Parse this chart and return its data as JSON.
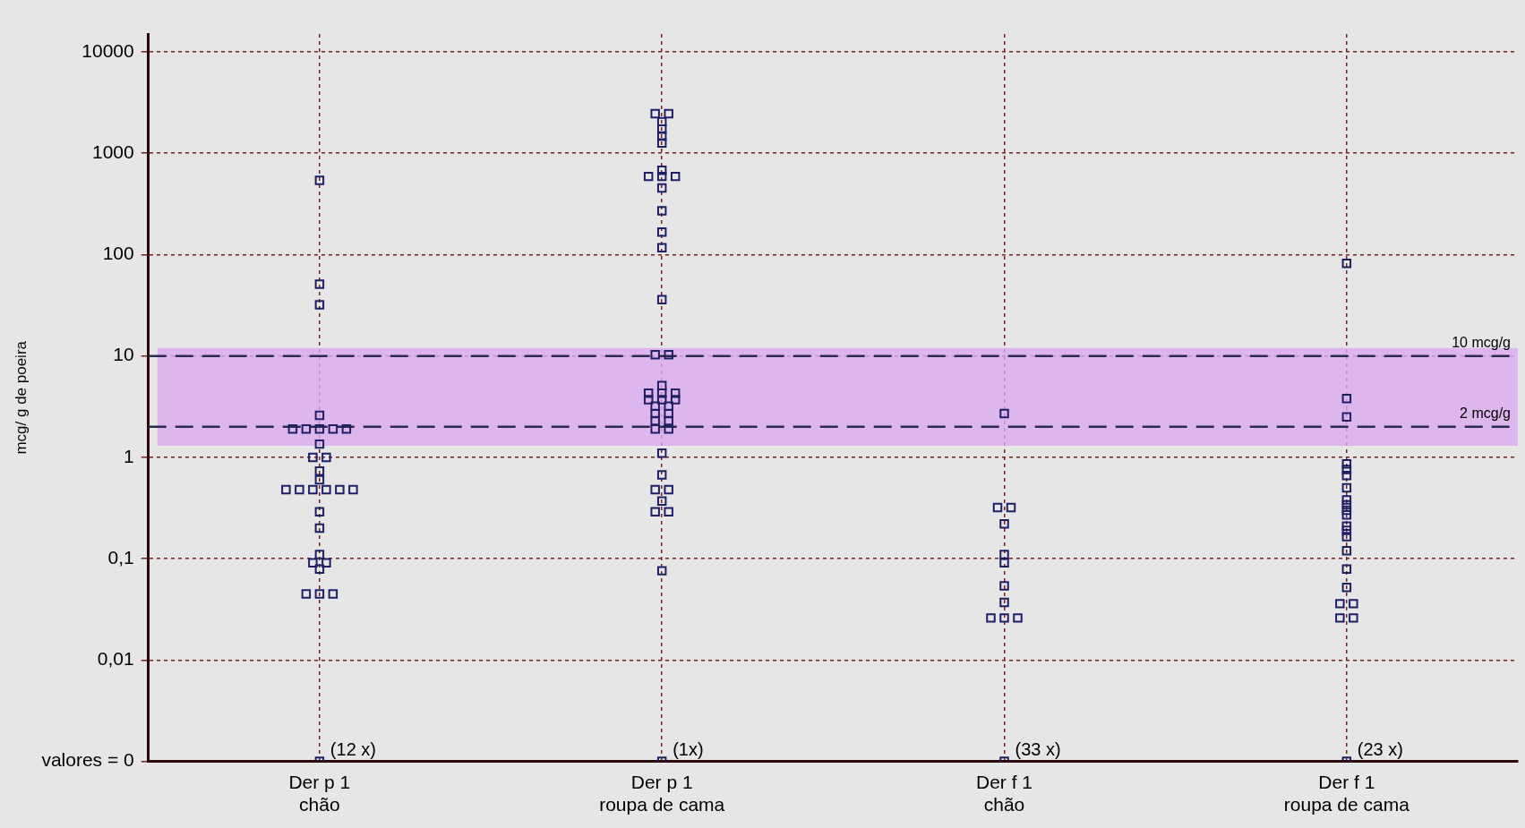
{
  "chart_data": {
    "type": "scatter",
    "ylabel": "mcg/ g de poeira",
    "categories": [
      "Der p 1\nchão",
      "Der p 1\nroupa de cama",
      "Der f 1\nchão",
      "Der f 1\nroupa de cama"
    ],
    "series": [
      {
        "color": "#1f1f66",
        "x": [
          "Der p 1\nchão",
          "Der p 1\nchão",
          "Der p 1\nchão",
          "Der p 1\nchão",
          "Der p 1\nchão",
          "Der p 1\nchão",
          "Der p 1\nchão",
          "Der p 1\nchão",
          "Der p 1\nchão",
          "Der p 1\nchão",
          "Der p 1\nchão",
          "Der p 1\nchão",
          "Der p 1\nchão",
          "Der p 1\nchão",
          "Der p 1\nchão",
          "Der p 1\nchão",
          "Der p 1\nchão",
          "Der p 1\nchão",
          "Der p 1\nchão",
          "Der p 1\nchão",
          "Der p 1\nchão",
          "Der p 1\nchão",
          "Der p 1\nchão",
          "Der p 1\nchão",
          "Der p 1\nchão",
          "Der p 1\nchão",
          "Der p 1\nchão",
          "Der p 1\nchão",
          "Der p 1\nchão",
          "Der p 1\nchão"
        ],
        "values": [
          540,
          51,
          32,
          2.6,
          1.9,
          1.9,
          1.9,
          1.9,
          1.9,
          1.35,
          1,
          1,
          0.73,
          0.6,
          0.48,
          0.48,
          0.48,
          0.48,
          0.48,
          0.48,
          0.29,
          0.2,
          0.11,
          0.091,
          0.091,
          0.079,
          0.045,
          0.045,
          0.045,
          0.001
        ]
      },
      {
        "color": "#1f1f66",
        "x": [
          "Der p 1\nroupa de cama",
          "Der p 1\nroupa de cama",
          "Der p 1\nroupa de cama",
          "Der p 1\nroupa de cama",
          "Der p 1\nroupa de cama",
          "Der p 1\nroupa de cama",
          "Der p 1\nroupa de cama",
          "Der p 1\nroupa de cama",
          "Der p 1\nroupa de cama",
          "Der p 1\nroupa de cama",
          "Der p 1\nroupa de cama",
          "Der p 1\nroupa de cama",
          "Der p 1\nroupa de cama",
          "Der p 1\nroupa de cama",
          "Der p 1\nroupa de cama",
          "Der p 1\nroupa de cama",
          "Der p 1\nroupa de cama",
          "Der p 1\nroupa de cama",
          "Der p 1\nroupa de cama",
          "Der p 1\nroupa de cama",
          "Der p 1\nroupa de cama",
          "Der p 1\nroupa de cama",
          "Der p 1\nroupa de cama",
          "Der p 1\nroupa de cama",
          "Der p 1\nroupa de cama",
          "Der p 1\nroupa de cama",
          "Der p 1\nroupa de cama",
          "Der p 1\nroupa de cama",
          "Der p 1\nroupa de cama",
          "Der p 1\nroupa de cama",
          "Der p 1\nroupa de cama",
          "Der p 1\nroupa de cama",
          "Der p 1\nroupa de cama",
          "Der p 1\nroupa de cama",
          "Der p 1\nroupa de cama",
          "Der p 1\nroupa de cama",
          "Der p 1\nroupa de cama",
          "Der p 1\nroupa de cama",
          "Der p 1\nroupa de cama",
          "Der p 1\nroupa de cama",
          "Der p 1\nroupa de cama"
        ],
        "values": [
          2450,
          2450,
          2050,
          1730,
          1480,
          1260,
          680,
          590,
          590,
          590,
          455,
          270,
          167,
          117,
          36,
          10.3,
          10.3,
          5.1,
          4.3,
          4.3,
          4.3,
          3.7,
          3.7,
          3.7,
          3.2,
          3.2,
          2.7,
          2.7,
          2.3,
          2.3,
          1.9,
          1.9,
          1.1,
          0.67,
          0.48,
          0.48,
          0.37,
          0.29,
          0.29,
          0.076,
          0.001
        ]
      },
      {
        "color": "#1f1f66",
        "x": [
          "Der f 1\nchão",
          "Der f 1\nchão",
          "Der f 1\nchão",
          "Der f 1\nchão",
          "Der f 1\nchão",
          "Der f 1\nchão",
          "Der f 1\nchão",
          "Der f 1\nchão",
          "Der f 1\nchão",
          "Der f 1\nchão",
          "Der f 1\nchão",
          "Der f 1\nchão"
        ],
        "values": [
          2.7,
          0.32,
          0.32,
          0.22,
          0.11,
          0.091,
          0.054,
          0.037,
          0.026,
          0.026,
          0.026,
          0.001
        ]
      },
      {
        "color": "#1f1f66",
        "x": [
          "Der f 1\nroupa de cama",
          "Der f 1\nroupa de cama",
          "Der f 1\nroupa de cama",
          "Der f 1\nroupa de cama",
          "Der f 1\nroupa de cama",
          "Der f 1\nroupa de cama",
          "Der f 1\nroupa de cama",
          "Der f 1\nroupa de cama",
          "Der f 1\nroupa de cama",
          "Der f 1\nroupa de cama",
          "Der f 1\nroupa de cama",
          "Der f 1\nroupa de cama",
          "Der f 1\nroupa de cama",
          "Der f 1\nroupa de cama",
          "Der f 1\nroupa de cama",
          "Der f 1\nroupa de cama",
          "Der f 1\nroupa de cama",
          "Der f 1\nroupa de cama",
          "Der f 1\nroupa de cama",
          "Der f 1\nroupa de cama",
          "Der f 1\nroupa de cama",
          "Der f 1\nroupa de cama"
        ],
        "values": [
          82,
          3.8,
          2.5,
          0.86,
          0.76,
          0.66,
          0.5,
          0.38,
          0.34,
          0.3,
          0.27,
          0.21,
          0.19,
          0.165,
          0.12,
          0.079,
          0.052,
          0.036,
          0.036,
          0.026,
          0.026,
          0.001
        ]
      }
    ],
    "log": "y",
    "ylim": [
      0.001,
      15000
    ],
    "yticks": [
      {
        "value": 0.001,
        "label": "valores = 0"
      },
      {
        "value": 0.01,
        "label": "0,01"
      },
      {
        "value": 0.1,
        "label": "0,1"
      },
      1,
      10,
      100,
      1000,
      10000
    ],
    "grid": true,
    "marker": "square",
    "legend": false,
    "ref_lines": [
      {
        "axis": "y",
        "value": 10,
        "label": "10 mcg/g",
        "color": "#2a2a4a",
        "line_style": "dashed"
      },
      {
        "axis": "y",
        "value": 2,
        "label": "2 mcg/g",
        "color": "#2a2a4a",
        "line_style": "dashed"
      }
    ],
    "bands": [
      {
        "axis": "y",
        "from": 1.3,
        "to": 12,
        "color": "#dcaaf0"
      }
    ],
    "annotations": [
      {
        "text": "(12 x)",
        "x": "Der p 1\nchão",
        "y": 0.001
      },
      {
        "text": "(1x)",
        "x": "Der p 1\nroupa de cama",
        "y": 0.001
      },
      {
        "text": "(33 x)",
        "x": "Der f 1\nchão",
        "y": 0.001
      },
      {
        "text": "(23 x)",
        "x": "Der f 1\nroupa de cama",
        "y": 0.001
      }
    ]
  }
}
